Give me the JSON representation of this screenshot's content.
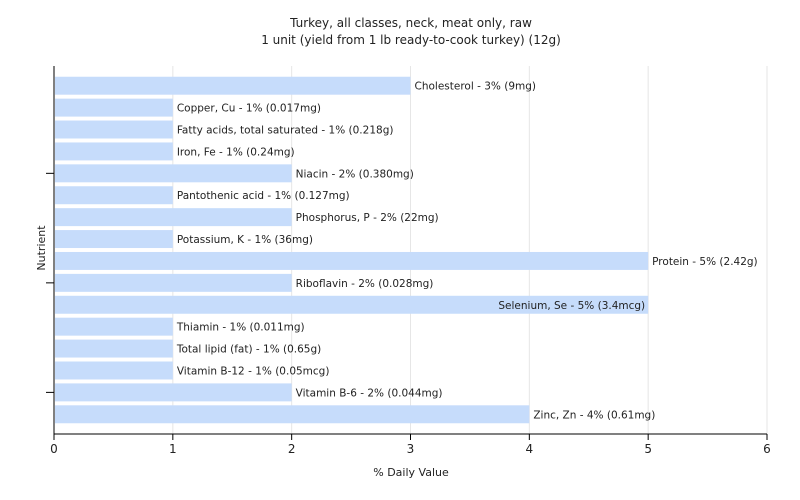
{
  "chart_data": {
    "type": "bar",
    "orientation": "horizontal",
    "title": "Turkey, all classes, neck, meat only, raw",
    "subtitle": "1 unit (yield from 1 lb ready-to-cook turkey) (12g)",
    "xlabel": "% Daily Value",
    "ylabel": "Nutrient",
    "xlim": [
      0,
      6
    ],
    "xticks": [
      0,
      1,
      2,
      3,
      4,
      5,
      6
    ],
    "grid": true,
    "bar_color": "#c6dcfb",
    "categories": [
      "Cholesterol",
      "Copper, Cu",
      "Fatty acids, total saturated",
      "Iron, Fe",
      "Niacin",
      "Pantothenic acid",
      "Phosphorus, P",
      "Potassium, K",
      "Protein",
      "Riboflavin",
      "Selenium, Se",
      "Thiamin",
      "Total lipid (fat)",
      "Vitamin B-12",
      "Vitamin B-6",
      "Zinc, Zn"
    ],
    "values": [
      3,
      1,
      1,
      1,
      2,
      1,
      2,
      1,
      5,
      2,
      5,
      1,
      1,
      1,
      2,
      4
    ],
    "labels": [
      "Cholesterol - 3% (9mg)",
      "Copper, Cu - 1% (0.017mg)",
      "Fatty acids, total saturated - 1% (0.218g)",
      "Iron, Fe - 1% (0.24mg)",
      "Niacin - 2% (0.380mg)",
      "Pantothenic acid - 1% (0.127mg)",
      "Phosphorus, P - 2% (22mg)",
      "Potassium, K - 1% (36mg)",
      "Protein - 5% (2.42g)",
      "Riboflavin - 2% (0.028mg)",
      "Selenium, Se - 5% (3.4mcg)",
      "Thiamin - 1% (0.011mg)",
      "Total lipid (fat) - 1% (0.65g)",
      "Vitamin B-12 - 1% (0.05mcg)",
      "Vitamin B-6 - 2% (0.044mg)",
      "Zinc, Zn - 4% (0.61mg)"
    ]
  }
}
